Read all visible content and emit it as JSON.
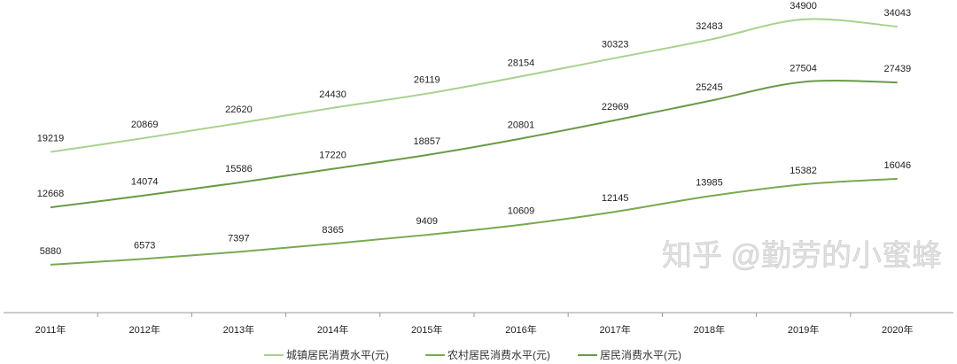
{
  "chart_data": {
    "type": "line",
    "title": "",
    "xlabel": "",
    "ylabel": "",
    "categories": [
      "2011年",
      "2012年",
      "2013年",
      "2014年",
      "2015年",
      "2016年",
      "2017年",
      "2018年",
      "2019年",
      "2020年"
    ],
    "ylim": [
      0,
      37000
    ],
    "grid": false,
    "legend_position": "bottom",
    "series": [
      {
        "name": "城镇居民消费水平(元)",
        "color": "#a9d18e",
        "values": [
          19219,
          20869,
          22620,
          24430,
          26119,
          28154,
          30323,
          32483,
          34900,
          34043
        ]
      },
      {
        "name": "农村居民消费水平(元)",
        "color": "#78a94f",
        "values": [
          5880,
          6573,
          7397,
          8365,
          9409,
          10609,
          12145,
          13985,
          15382,
          16046
        ]
      },
      {
        "name": "居民消费水平(元)",
        "color": "#6a9a48",
        "values": [
          12668,
          14074,
          15586,
          17220,
          18857,
          20801,
          22969,
          25245,
          27504,
          27439
        ]
      }
    ]
  },
  "watermark": "知乎 @勤劳的小蜜蜂"
}
